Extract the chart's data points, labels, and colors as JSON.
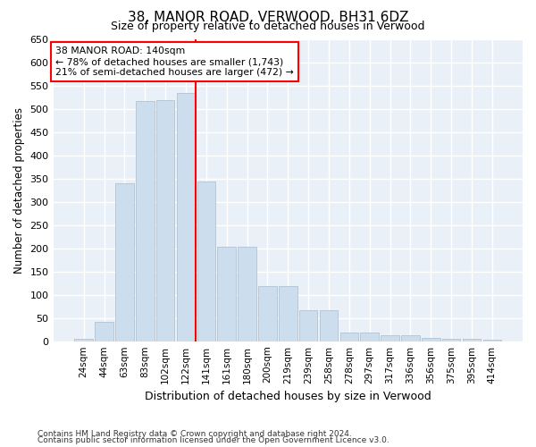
{
  "title": "38, MANOR ROAD, VERWOOD, BH31 6DZ",
  "subtitle": "Size of property relative to detached houses in Verwood",
  "xlabel": "Distribution of detached houses by size in Verwood",
  "ylabel": "Number of detached properties",
  "bar_color": "#ccdded",
  "bar_edge_color": "#aabbcc",
  "background_color": "#eaf0f8",
  "grid_color": "#ffffff",
  "categories": [
    "24sqm",
    "44sqm",
    "63sqm",
    "83sqm",
    "102sqm",
    "122sqm",
    "141sqm",
    "161sqm",
    "180sqm",
    "200sqm",
    "219sqm",
    "239sqm",
    "258sqm",
    "278sqm",
    "297sqm",
    "317sqm",
    "336sqm",
    "356sqm",
    "375sqm",
    "395sqm",
    "414sqm"
  ],
  "values": [
    5,
    42,
    340,
    518,
    520,
    535,
    343,
    203,
    203,
    119,
    119,
    67,
    67,
    18,
    18,
    13,
    13,
    8,
    5,
    5,
    3
  ],
  "ylim": [
    0,
    650
  ],
  "yticks": [
    0,
    50,
    100,
    150,
    200,
    250,
    300,
    350,
    400,
    450,
    500,
    550,
    600,
    650
  ],
  "property_label": "38 MANOR ROAD: 140sqm",
  "annotation_line1": "← 78% of detached houses are smaller (1,743)",
  "annotation_line2": "21% of semi-detached houses are larger (472) →",
  "vline_x_index": 6,
  "footnote1": "Contains HM Land Registry data © Crown copyright and database right 2024.",
  "footnote2": "Contains public sector information licensed under the Open Government Licence v3.0."
}
